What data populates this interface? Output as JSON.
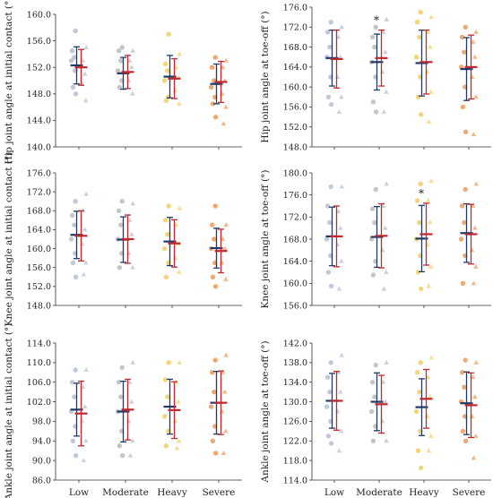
{
  "colors": {
    "Low": "#b4c0d4",
    "Moderate": "#b8bcc0",
    "Heavy": "#f0d060",
    "Severe": "#ec9a5a",
    "bar_condition_1": "#1f3a68",
    "bar_condition_2": "#c0282d"
  },
  "chart_data": [
    {
      "type": "scatter",
      "ylabel": "Hip joint angle at initial contact (°)",
      "ylim": [
        140,
        160
      ],
      "yticks": [
        "140.0",
        "144.0",
        "148.0",
        "152.0",
        "156.0",
        "160.0"
      ],
      "categories": [
        "Low",
        "Moderate",
        "Heavy",
        "Severe"
      ],
      "show_category_labels": false,
      "significance": [],
      "series": [
        {
          "marker": "circle",
          "mean": [
            152.3,
            151.1,
            150.6,
            149.5
          ],
          "sd": [
            2.8,
            2.4,
            3.2,
            3.0
          ],
          "points": [
            [
              157.5,
              154.5,
              153.5,
              153.0,
              151.5,
              149.0,
              148.0
            ],
            [
              155.0,
              154.5,
              153.0,
              151.5,
              150.0,
              149.0
            ],
            [
              157.0,
              152.5,
              151.5,
              150.0,
              147.5,
              147.0
            ],
            [
              153.5,
              152.0,
              150.0,
              149.0,
              147.5,
              146.5,
              144.5
            ]
          ]
        },
        {
          "marker": "triangle",
          "mean": [
            152.0,
            151.3,
            150.3,
            149.8
          ],
          "sd": [
            2.7,
            2.5,
            3.0,
            3.1
          ],
          "points": [
            [
              155.0,
              153.0,
              151.0,
              149.5,
              147.0
            ],
            [
              154.5,
              153.0,
              152.0,
              150.0,
              148.0
            ],
            [
              154.0,
              152.0,
              150.5,
              148.5,
              146.5
            ],
            [
              153.0,
              152.0,
              150.0,
              148.0,
              146.0,
              143.5
            ]
          ]
        }
      ]
    },
    {
      "type": "scatter",
      "ylabel": "Hip joint angle at toe-off (°)",
      "ylim": [
        148,
        176
      ],
      "yticks": [
        "148.0",
        "152.0",
        "156.0",
        "160.0",
        "164.0",
        "168.0",
        "172.0",
        "176.0"
      ],
      "categories": [
        "Low",
        "Moderate",
        "Heavy",
        "Severe"
      ],
      "show_category_labels": false,
      "significance": [
        "",
        "*",
        "",
        ""
      ],
      "series": [
        {
          "marker": "circle",
          "mean": [
            165.8,
            165.0,
            164.8,
            163.6
          ],
          "sd": [
            5.6,
            5.6,
            6.6,
            6.3
          ],
          "points": [
            [
              173.0,
              171.0,
              168.0,
              166.0,
              162.0,
              158.0,
              156.5
            ],
            [
              172.0,
              170.0,
              168.0,
              165.0,
              162.0,
              157.0,
              155.0
            ],
            [
              175.0,
              173.0,
              170.0,
              166.0,
              162.0,
              158.0,
              154.5
            ],
            [
              172.0,
              170.0,
              167.0,
              164.0,
              160.0,
              156.0,
              151.0
            ]
          ]
        },
        {
          "marker": "triangle",
          "mean": [
            165.6,
            165.8,
            165.0,
            164.0
          ],
          "sd": [
            5.8,
            5.6,
            6.4,
            6.4
          ],
          "points": [
            [
              172.0,
              170.0,
              166.0,
              162.0,
              158.0,
              155.0
            ],
            [
              173.5,
              171.0,
              167.0,
              163.0,
              159.0,
              155.0
            ],
            [
              174.0,
              171.0,
              168.0,
              163.0,
              159.0,
              153.0
            ],
            [
              171.0,
              169.0,
              166.0,
              162.0,
              158.0,
              150.5
            ]
          ]
        }
      ]
    },
    {
      "type": "scatter",
      "ylabel": "Knee joint angle at initial contact (°)",
      "ylim": [
        148,
        176
      ],
      "yticks": [
        "148.0",
        "152.0",
        "156.0",
        "160.0",
        "164.0",
        "168.0",
        "172.0",
        "176.0"
      ],
      "categories": [
        "Low",
        "Moderate",
        "Heavy",
        "Severe"
      ],
      "show_category_labels": false,
      "significance": [],
      "series": [
        {
          "marker": "circle",
          "mean": [
            162.9,
            161.9,
            161.5,
            160.1
          ],
          "sd": [
            5.0,
            4.8,
            5.1,
            4.2
          ],
          "points": [
            [
              170.0,
              167.0,
              165.0,
              162.0,
              159.0,
              157.0,
              154.0
            ],
            [
              170.0,
              168.0,
              165.0,
              162.0,
              159.0,
              156.0
            ],
            [
              169.0,
              166.0,
              163.0,
              160.0,
              157.0,
              154.0
            ],
            [
              169.0,
              165.0,
              162.0,
              160.0,
              157.0,
              154.0,
              152.0
            ]
          ]
        },
        {
          "marker": "triangle",
          "mean": [
            162.7,
            162.0,
            161.1,
            159.5
          ],
          "sd": [
            5.3,
            5.1,
            5.0,
            4.6
          ],
          "points": [
            [
              171.5,
              168.0,
              164.0,
              161.0,
              157.0,
              154.5
            ],
            [
              169.5,
              166.0,
              163.0,
              159.0,
              156.0
            ],
            [
              168.5,
              165.0,
              161.0,
              158.0,
              155.0
            ],
            [
              165.0,
              162.0,
              160.0,
              157.0,
              153.5
            ]
          ]
        }
      ]
    },
    {
      "type": "scatter",
      "ylabel": "Knee joint angle at toe-off (°)",
      "ylim": [
        156,
        180
      ],
      "yticks": [
        "156.0",
        "160.0",
        "164.0",
        "168.0",
        "172.0",
        "176.0",
        "180.0"
      ],
      "categories": [
        "Low",
        "Moderate",
        "Heavy",
        "Severe"
      ],
      "show_category_labels": false,
      "significance": [
        "",
        "",
        "*",
        ""
      ],
      "series": [
        {
          "marker": "circle",
          "mean": [
            168.5,
            168.4,
            168.1,
            169.1
          ],
          "sd": [
            5.3,
            5.5,
            6.0,
            5.3
          ],
          "points": [
            [
              177.5,
              174.0,
              171.0,
              168.0,
              165.0,
              162.0,
              159.5
            ],
            [
              177.0,
              173.5,
              171.0,
              168.0,
              164.0,
              161.5
            ],
            [
              178.0,
              175.0,
              171.0,
              168.0,
              165.0,
              162.0,
              159.0
            ],
            [
              177.0,
              174.0,
              171.0,
              168.0,
              165.0,
              160.0
            ]
          ]
        },
        {
          "marker": "triangle",
          "mean": [
            168.5,
            168.6,
            168.9,
            168.9
          ],
          "sd": [
            5.5,
            5.8,
            5.6,
            5.4
          ],
          "points": [
            [
              177.5,
              173.0,
              170.0,
              167.0,
              164.0,
              159.0
            ],
            [
              178.0,
              174.0,
              170.0,
              166.0,
              162.0,
              159.0
            ],
            [
              178.5,
              175.0,
              171.0,
              167.0,
              163.0,
              159.5
            ],
            [
              178.0,
              174.0,
              170.0,
              166.0,
              163.0,
              160.0
            ]
          ]
        }
      ]
    },
    {
      "type": "scatter",
      "ylabel": "Ankle joint angle at initial contact (°)",
      "ylim": [
        86,
        114
      ],
      "yticks": [
        "86.0",
        "90.0",
        "94.0",
        "98.0",
        "102.0",
        "106.0",
        "110.0",
        "114.0"
      ],
      "categories": [
        "Low",
        "Moderate",
        "Heavy",
        "Severe"
      ],
      "show_category_labels": true,
      "significance": [],
      "series": [
        {
          "marker": "circle",
          "mean": [
            100.4,
            100.0,
            101.0,
            101.8
          ],
          "sd": [
            5.4,
            6.2,
            5.6,
            6.4
          ],
          "points": [
            [
              108.5,
              106.0,
              103.0,
              100.0,
              97.0,
              94.0,
              91.0
            ],
            [
              109.0,
              106.0,
              103.0,
              100.0,
              96.0,
              93.0,
              91.0
            ],
            [
              110.0,
              106.5,
              103.0,
              99.0,
              96.0,
              93.0
            ],
            [
              110.5,
              108.0,
              104.0,
              101.0,
              97.0,
              94.0,
              91.5
            ]
          ]
        },
        {
          "marker": "triangle",
          "mean": [
            99.6,
            100.4,
            100.3,
            101.8
          ],
          "sd": [
            6.6,
            6.2,
            5.8,
            6.5
          ],
          "points": [
            [
              108.5,
              105.0,
              101.0,
              98.0,
              94.0,
              90.0
            ],
            [
              110.0,
              106.0,
              102.0,
              98.0,
              94.0,
              91.0
            ],
            [
              110.0,
              106.0,
              102.0,
              98.0,
              94.0,
              92.5
            ],
            [
              111.5,
              108.0,
              104.0,
              100.0,
              96.0,
              91.5
            ]
          ]
        }
      ]
    },
    {
      "type": "scatter",
      "ylabel": "Ankle joint angle at toe-off (°)",
      "ylim": [
        114,
        142
      ],
      "yticks": [
        "114.0",
        "118.0",
        "122.0",
        "126.0",
        "130.0",
        "134.0",
        "138.0",
        "142.0"
      ],
      "categories": [
        "Low",
        "Moderate",
        "Heavy",
        "Severe"
      ],
      "show_category_labels": true,
      "significance": [],
      "series": [
        {
          "marker": "circle",
          "mean": [
            130.2,
            130.0,
            128.9,
            129.7
          ],
          "sd": [
            5.6,
            5.9,
            5.8,
            6.4
          ],
          "points": [
            [
              138.0,
              135.0,
              132.0,
              129.0,
              126.0,
              123.0,
              121.5
            ],
            [
              137.5,
              134.0,
              131.0,
              128.0,
              125.0,
              122.0
            ],
            [
              138.0,
              136.0,
              132.0,
              128.0,
              124.0,
              120.0,
              116.5
            ],
            [
              138.5,
              136.0,
              133.0,
              130.0,
              127.0,
              124.0,
              122.0
            ]
          ]
        },
        {
          "marker": "triangle",
          "mean": [
            130.2,
            129.5,
            130.6,
            129.3
          ],
          "sd": [
            6.0,
            5.9,
            6.0,
            6.6
          ],
          "points": [
            [
              139.5,
              136.0,
              132.0,
              128.0,
              124.0,
              120.0
            ],
            [
              138.0,
              134.0,
              130.0,
              126.0,
              122.0
            ],
            [
              139.0,
              135.0,
              131.0,
              127.0,
              123.0,
              120.0
            ],
            [
              138.0,
              135.0,
              131.0,
              127.0,
              123.0,
              118.5
            ]
          ]
        }
      ]
    }
  ]
}
